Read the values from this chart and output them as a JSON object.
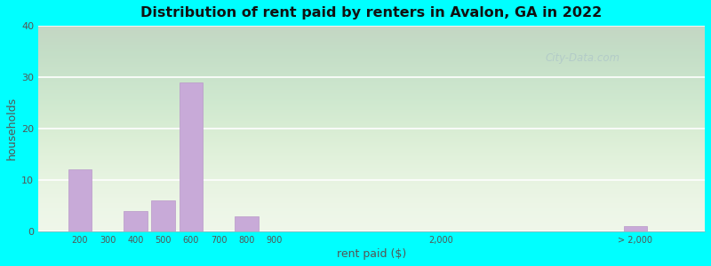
{
  "title": "Distribution of rent paid by renters in Avalon, GA in 2022",
  "xlabel": "rent paid ($)",
  "ylabel": "households",
  "background_color": "#00FFFF",
  "bar_color": "#c8aad8",
  "bar_edge_color": "#b898c8",
  "ylim": [
    0,
    40
  ],
  "yticks": [
    0,
    10,
    20,
    30,
    40
  ],
  "grid_color": "#ffffff",
  "categories": [
    "200",
    "300",
    "400",
    "500",
    "600",
    "700",
    "800",
    "900",
    "2,000",
    "> 2,000"
  ],
  "values": [
    12,
    0,
    4,
    6,
    29,
    0,
    3,
    0,
    0,
    1
  ],
  "watermark": "City-Data.com",
  "x_positions": [
    1,
    2,
    3,
    4,
    5,
    6,
    7,
    8,
    14,
    21
  ],
  "xlim": [
    -0.5,
    23.5
  ],
  "bar_width": 0.85,
  "gradient_top": "#f5faf0",
  "gradient_bottom": "#d8eed0"
}
